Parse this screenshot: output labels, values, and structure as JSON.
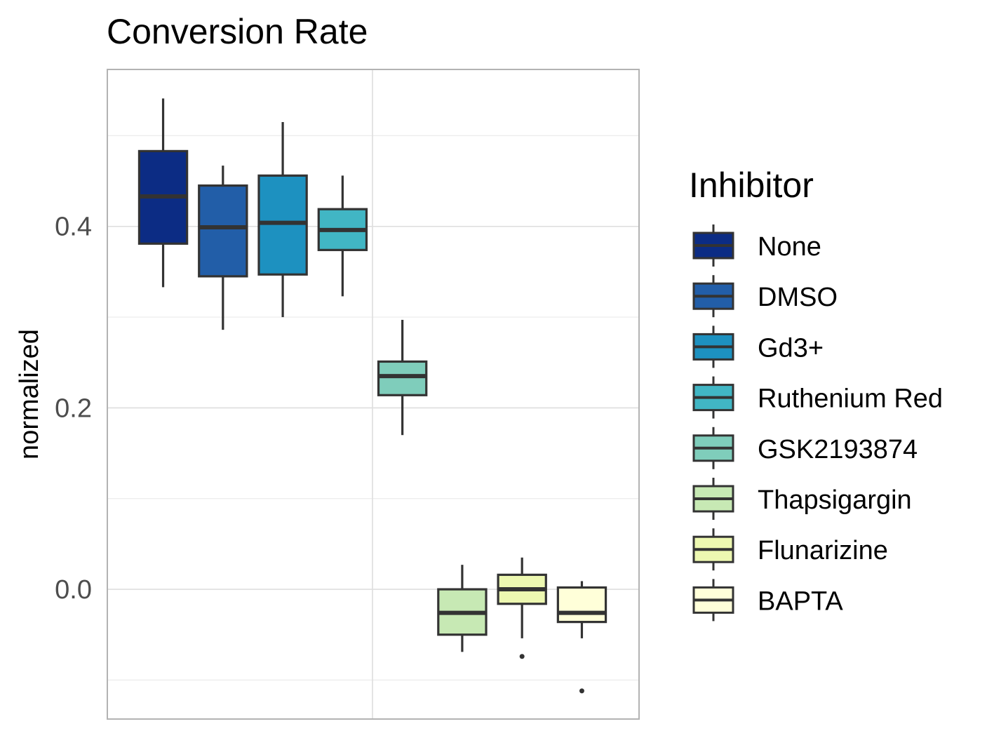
{
  "chart_data": {
    "type": "box",
    "title": "Conversion Rate",
    "xlabel": "",
    "ylabel": "normalized",
    "ylim": [
      -0.143,
      0.573
    ],
    "yticks": [
      0.0,
      0.2,
      0.4
    ],
    "ytick_labels": [
      "0.0",
      "0.2",
      "0.4"
    ],
    "grid": true,
    "legend": {
      "title": "Inhibitor",
      "position": "right"
    },
    "series": [
      {
        "name": "None",
        "color": "#0c2c84",
        "min": 0.333,
        "q1": 0.381,
        "median": 0.433,
        "q3": 0.483,
        "max": 0.541,
        "outliers": []
      },
      {
        "name": "DMSO",
        "color": "#225ea8",
        "min": 0.286,
        "q1": 0.345,
        "median": 0.399,
        "q3": 0.445,
        "max": 0.467,
        "outliers": []
      },
      {
        "name": "Gd3+",
        "color": "#1d91c0",
        "min": 0.3,
        "q1": 0.347,
        "median": 0.404,
        "q3": 0.456,
        "max": 0.515,
        "outliers": []
      },
      {
        "name": "Ruthenium Red",
        "color": "#41b6c4",
        "min": 0.323,
        "q1": 0.374,
        "median": 0.396,
        "q3": 0.419,
        "max": 0.456,
        "outliers": []
      },
      {
        "name": "GSK2193874",
        "color": "#7fcdbb",
        "min": 0.17,
        "q1": 0.214,
        "median": 0.235,
        "q3": 0.251,
        "max": 0.297,
        "outliers": []
      },
      {
        "name": "Thapsigargin",
        "color": "#c7e9b4",
        "min": -0.069,
        "q1": -0.05,
        "median": -0.026,
        "q3": 0.0,
        "max": 0.027,
        "outliers": []
      },
      {
        "name": "Flunarizine",
        "color": "#edf8b1",
        "min": -0.054,
        "q1": -0.016,
        "median": 0.0,
        "q3": 0.016,
        "max": 0.035,
        "outliers": [
          -0.074
        ]
      },
      {
        "name": "BAPTA",
        "color": "#ffffd9",
        "min": -0.054,
        "q1": -0.036,
        "median": -0.026,
        "q3": 0.002,
        "max": 0.009,
        "outliers": [
          -0.112
        ]
      }
    ]
  }
}
